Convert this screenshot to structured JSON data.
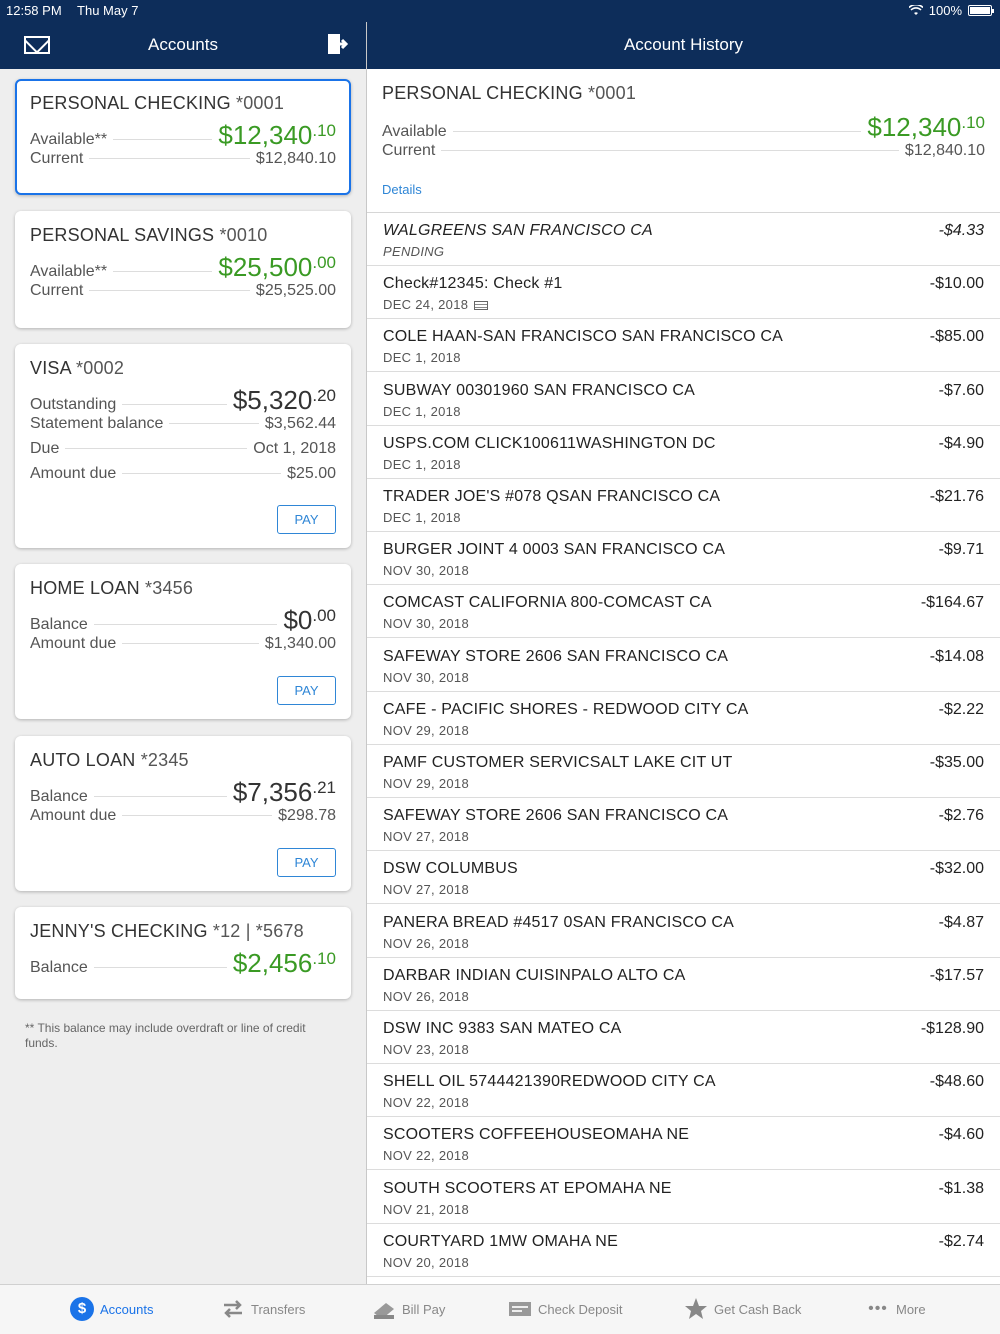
{
  "status_bar": {
    "time": "12:58 PM",
    "date": "Thu May 7",
    "battery": "100%"
  },
  "left_header": {
    "title": "Accounts"
  },
  "right_header": {
    "title": "Account History"
  },
  "accounts": [
    {
      "name": "PERSONAL CHECKING",
      "number": "*0001",
      "rows": [
        {
          "label": "Available**",
          "value_main": "$12,340",
          "value_cents": ".10"
        },
        {
          "label": "Current",
          "value": "$12,840.10"
        }
      ]
    },
    {
      "name": "PERSONAL SAVINGS",
      "number": "*0010",
      "rows": [
        {
          "label": "Available**",
          "value_main": "$25,500",
          "value_cents": ".00"
        },
        {
          "label": "Current",
          "value": "$25,525.00"
        }
      ]
    },
    {
      "name": "VISA",
      "number": "*0002",
      "rows": [
        {
          "label": "Outstanding",
          "value_main": "$5,320",
          "value_cents": ".20"
        },
        {
          "label": "Statement balance",
          "value": "$3,562.44"
        },
        {
          "label": "Due",
          "value": "Oct 1, 2018"
        },
        {
          "label": "Amount due",
          "value": "$25.00"
        }
      ],
      "pay_label": "PAY"
    },
    {
      "name": "HOME LOAN",
      "number": "*3456",
      "rows": [
        {
          "label": "Balance",
          "value_main": "$0",
          "value_cents": ".00"
        },
        {
          "label": "Amount due",
          "value": "$1,340.00"
        }
      ],
      "pay_label": "PAY"
    },
    {
      "name": "AUTO LOAN",
      "number": "*2345",
      "rows": [
        {
          "label": "Balance",
          "value_main": "$7,356",
          "value_cents": ".21"
        },
        {
          "label": "Amount due",
          "value": "$298.78"
        }
      ],
      "pay_label": "PAY"
    },
    {
      "name": "JENNY'S CHECKING",
      "number": "*12 | *5678",
      "rows": [
        {
          "label": "Balance",
          "value_main": "$2,456",
          "value_cents": ".10"
        }
      ]
    }
  ],
  "footnote": "** This balance may include overdraft or line of credit funds.",
  "history": {
    "account_name": "PERSONAL CHECKING",
    "account_number": "*0001",
    "available_label": "Available",
    "available_main": "$12,340",
    "available_cents": ".10",
    "current_label": "Current",
    "current_value": "$12,840.10",
    "details_label": "Details",
    "transactions": [
      {
        "desc": "WALGREENS SAN FRANCISCO CA",
        "date": "PENDING",
        "amount": "-$4.33"
      },
      {
        "desc": "Check#12345: Check #1",
        "date": "DEC 24, 2018",
        "amount": "-$10.00"
      },
      {
        "desc": "COLE HAAN-SAN FRANCISCO SAN FRANCISCO CA",
        "date": "DEC 1, 2018",
        "amount": "-$85.00"
      },
      {
        "desc": "SUBWAY 00301960 SAN FRANCISCO CA",
        "date": "DEC 1, 2018",
        "amount": "-$7.60"
      },
      {
        "desc": "USPS.COM CLICK100611WASHINGTON DC",
        "date": "DEC 1, 2018",
        "amount": "-$4.90"
      },
      {
        "desc": "TRADER JOE'S #078 QSAN FRANCISCO CA",
        "date": "DEC 1, 2018",
        "amount": "-$21.76"
      },
      {
        "desc": "BURGER JOINT 4 0003 SAN FRANCISCO CA",
        "date": "NOV 30, 2018",
        "amount": "-$9.71"
      },
      {
        "desc": "COMCAST CALIFORNIA 800-COMCAST CA",
        "date": "NOV 30, 2018",
        "amount": "-$164.67"
      },
      {
        "desc": "SAFEWAY STORE 2606 SAN FRANCISCO CA",
        "date": "NOV 30, 2018",
        "amount": "-$14.08"
      },
      {
        "desc": "CAFE - PACIFIC SHORES - REDWOOD CITY CA",
        "date": "NOV 29, 2018",
        "amount": "-$2.22"
      },
      {
        "desc": "PAMF CUSTOMER SERVICSALT LAKE CIT UT",
        "date": "NOV 29, 2018",
        "amount": "-$35.00"
      },
      {
        "desc": "SAFEWAY STORE 2606 SAN FRANCISCO CA",
        "date": "NOV 27, 2018",
        "amount": "-$2.76"
      },
      {
        "desc": "DSW COLUMBUS",
        "date": "NOV 27, 2018",
        "amount": "-$32.00"
      },
      {
        "desc": "PANERA BREAD #4517 0SAN FRANCISCO CA",
        "date": "NOV 26, 2018",
        "amount": "-$4.87"
      },
      {
        "desc": "DARBAR INDIAN CUISINPALO ALTO CA",
        "date": "NOV 26, 2018",
        "amount": "-$17.57"
      },
      {
        "desc": "DSW INC 9383 SAN MATEO CA",
        "date": "NOV 23, 2018",
        "amount": "-$128.90"
      },
      {
        "desc": "SHELL OIL 5744421390REDWOOD CITY CA",
        "date": "NOV 22, 2018",
        "amount": "-$48.60"
      },
      {
        "desc": "SCOOTERS COFFEEHOUSEOMAHA NE",
        "date": "NOV 22, 2018",
        "amount": "-$4.60"
      },
      {
        "desc": "SOUTH SCOOTERS AT EPOMAHA NE",
        "date": "NOV 21, 2018",
        "amount": "-$1.38"
      },
      {
        "desc": "COURTYARD 1MW OMAHA NE",
        "date": "NOV 20, 2018",
        "amount": "-$2.74"
      }
    ]
  },
  "tabs": [
    {
      "label": "Accounts",
      "icon": "dollar-icon",
      "active": true
    },
    {
      "label": "Transfers",
      "icon": "transfer-arrows-icon"
    },
    {
      "label": "Bill Pay",
      "icon": "bill-pay-icon"
    },
    {
      "label": "Check Deposit",
      "icon": "check-icon"
    },
    {
      "label": "Get Cash Back",
      "icon": "star-icon"
    },
    {
      "label": "More",
      "icon": "more-dots-icon"
    }
  ],
  "colors": {
    "header": "#0d2d5a",
    "accent": "#1a73e8",
    "green": "#3a9a24"
  }
}
